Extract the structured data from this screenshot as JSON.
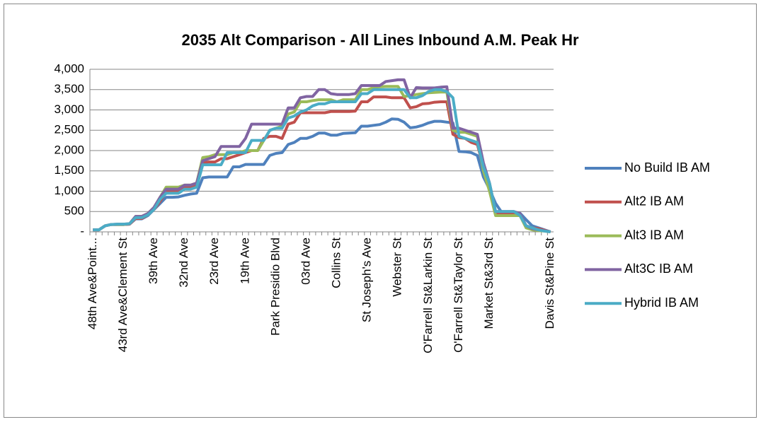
{
  "chart_data": {
    "type": "line",
    "title": "2035 Alt Comparison - All Lines Inbound A.M. Peak Hr",
    "categories": [
      "48th Ave&Point...",
      null,
      null,
      null,
      null,
      "43rd Ave&Clement St",
      null,
      null,
      null,
      null,
      "39th Ave",
      null,
      null,
      null,
      null,
      "32nd Ave",
      null,
      null,
      null,
      null,
      "23rd Ave",
      null,
      null,
      null,
      null,
      "19th Ave",
      null,
      null,
      null,
      null,
      "Park Presidio Blvd",
      null,
      null,
      null,
      null,
      "03rd Ave",
      null,
      null,
      null,
      null,
      "Collins St",
      null,
      null,
      null,
      null,
      "St Joseph's Ave",
      null,
      null,
      null,
      null,
      "Webster St",
      null,
      null,
      null,
      null,
      "O'Farrell St&Larkin St",
      null,
      null,
      null,
      null,
      "O'Farrell St&Taylor St",
      null,
      null,
      null,
      null,
      "Market St&3rd St",
      null,
      null,
      null,
      null,
      null,
      null,
      null,
      null,
      null,
      "Davis St&Pine St"
    ],
    "series": [
      {
        "name": "No Build IB AM",
        "color": "#4f81bd",
        "values": [
          50,
          50,
          150,
          180,
          180,
          180,
          190,
          320,
          320,
          400,
          550,
          700,
          850,
          850,
          860,
          900,
          930,
          950,
          1330,
          1350,
          1350,
          1350,
          1350,
          1600,
          1600,
          1660,
          1660,
          1660,
          1660,
          1880,
          1930,
          1950,
          2150,
          2200,
          2300,
          2300,
          2350,
          2430,
          2430,
          2380,
          2380,
          2420,
          2430,
          2440,
          2600,
          2600,
          2620,
          2640,
          2700,
          2780,
          2770,
          2700,
          2560,
          2580,
          2620,
          2680,
          2720,
          2720,
          2700,
          2680,
          1980,
          1970,
          1950,
          1880,
          1350,
          1050,
          700,
          480,
          480,
          460,
          460,
          300,
          150,
          100,
          50,
          0
        ]
      },
      {
        "name": "Alt2 IB AM",
        "color": "#c0504d",
        "values": [
          50,
          50,
          150,
          180,
          180,
          180,
          190,
          330,
          330,
          420,
          550,
          750,
          980,
          1000,
          1000,
          1100,
          1100,
          1150,
          1700,
          1720,
          1720,
          1800,
          1800,
          1850,
          1900,
          1950,
          2000,
          2000,
          2300,
          2350,
          2350,
          2300,
          2650,
          2700,
          2930,
          2930,
          2930,
          2930,
          2930,
          2960,
          2960,
          2960,
          2960,
          2970,
          3200,
          3200,
          3320,
          3320,
          3320,
          3300,
          3300,
          3300,
          3050,
          3080,
          3150,
          3160,
          3190,
          3200,
          3200,
          2400,
          2320,
          2300,
          2200,
          2150,
          1600,
          1100,
          450,
          450,
          450,
          450,
          400,
          150,
          100,
          80,
          40,
          0
        ]
      },
      {
        "name": "Alt3 IB AM",
        "color": "#9bbb59",
        "values": [
          50,
          50,
          150,
          180,
          180,
          180,
          200,
          380,
          380,
          450,
          600,
          850,
          1100,
          1100,
          1100,
          1150,
          1150,
          1200,
          1830,
          1850,
          1900,
          1900,
          1900,
          1950,
          1950,
          2000,
          2000,
          2000,
          2250,
          2500,
          2550,
          2600,
          2900,
          2950,
          3200,
          3200,
          3230,
          3250,
          3250,
          3250,
          3200,
          3250,
          3250,
          3250,
          3500,
          3500,
          3550,
          3570,
          3580,
          3580,
          3580,
          3330,
          3350,
          3380,
          3400,
          3420,
          3430,
          3440,
          3440,
          2500,
          2450,
          2450,
          2400,
          2350,
          1500,
          1000,
          400,
          400,
          400,
          400,
          400,
          100,
          50,
          30,
          20,
          0
        ]
      },
      {
        "name": "Alt3C IB AM",
        "color": "#8064a2",
        "values": [
          50,
          50,
          150,
          180,
          190,
          190,
          200,
          380,
          380,
          450,
          600,
          850,
          1050,
          1050,
          1050,
          1150,
          1150,
          1200,
          1750,
          1800,
          1850,
          2100,
          2100,
          2100,
          2100,
          2300,
          2650,
          2650,
          2650,
          2650,
          2650,
          2650,
          3050,
          3050,
          3300,
          3330,
          3330,
          3500,
          3500,
          3400,
          3380,
          3380,
          3380,
          3400,
          3600,
          3600,
          3600,
          3600,
          3700,
          3720,
          3740,
          3740,
          3300,
          3550,
          3540,
          3540,
          3540,
          3560,
          3570,
          2550,
          2550,
          2500,
          2450,
          2400,
          1700,
          1200,
          500,
          500,
          500,
          500,
          450,
          150,
          80,
          50,
          30,
          0
        ]
      },
      {
        "name": "Hybrid IB AM",
        "color": "#4bacc6",
        "values": [
          50,
          50,
          150,
          180,
          190,
          190,
          200,
          350,
          350,
          420,
          550,
          800,
          950,
          950,
          950,
          1050,
          1050,
          1100,
          1650,
          1650,
          1650,
          1650,
          1950,
          1950,
          1950,
          1950,
          2250,
          2250,
          2250,
          2500,
          2550,
          2550,
          2800,
          2850,
          2950,
          3000,
          3100,
          3150,
          3150,
          3200,
          3200,
          3200,
          3200,
          3200,
          3400,
          3400,
          3500,
          3500,
          3500,
          3500,
          3500,
          3500,
          3300,
          3300,
          3350,
          3450,
          3500,
          3500,
          3450,
          3300,
          2350,
          2300,
          2250,
          2200,
          1600,
          1200,
          500,
          500,
          500,
          500,
          400,
          150,
          100,
          50,
          20,
          0
        ]
      }
    ],
    "ylim": [
      0,
      4000
    ],
    "yticks": [
      {
        "value": 0,
        "label": "-"
      },
      500,
      {
        "value": 1000,
        "label": "1,000"
      },
      {
        "value": 1500,
        "label": "1,500"
      },
      {
        "value": 2000,
        "label": "2,000"
      },
      {
        "value": 2500,
        "label": "2,500"
      },
      {
        "value": 3000,
        "label": "3,000"
      },
      {
        "value": 3500,
        "label": "3,500"
      },
      {
        "value": 4000,
        "label": "4,000"
      }
    ],
    "grid": true,
    "legend": "right"
  }
}
